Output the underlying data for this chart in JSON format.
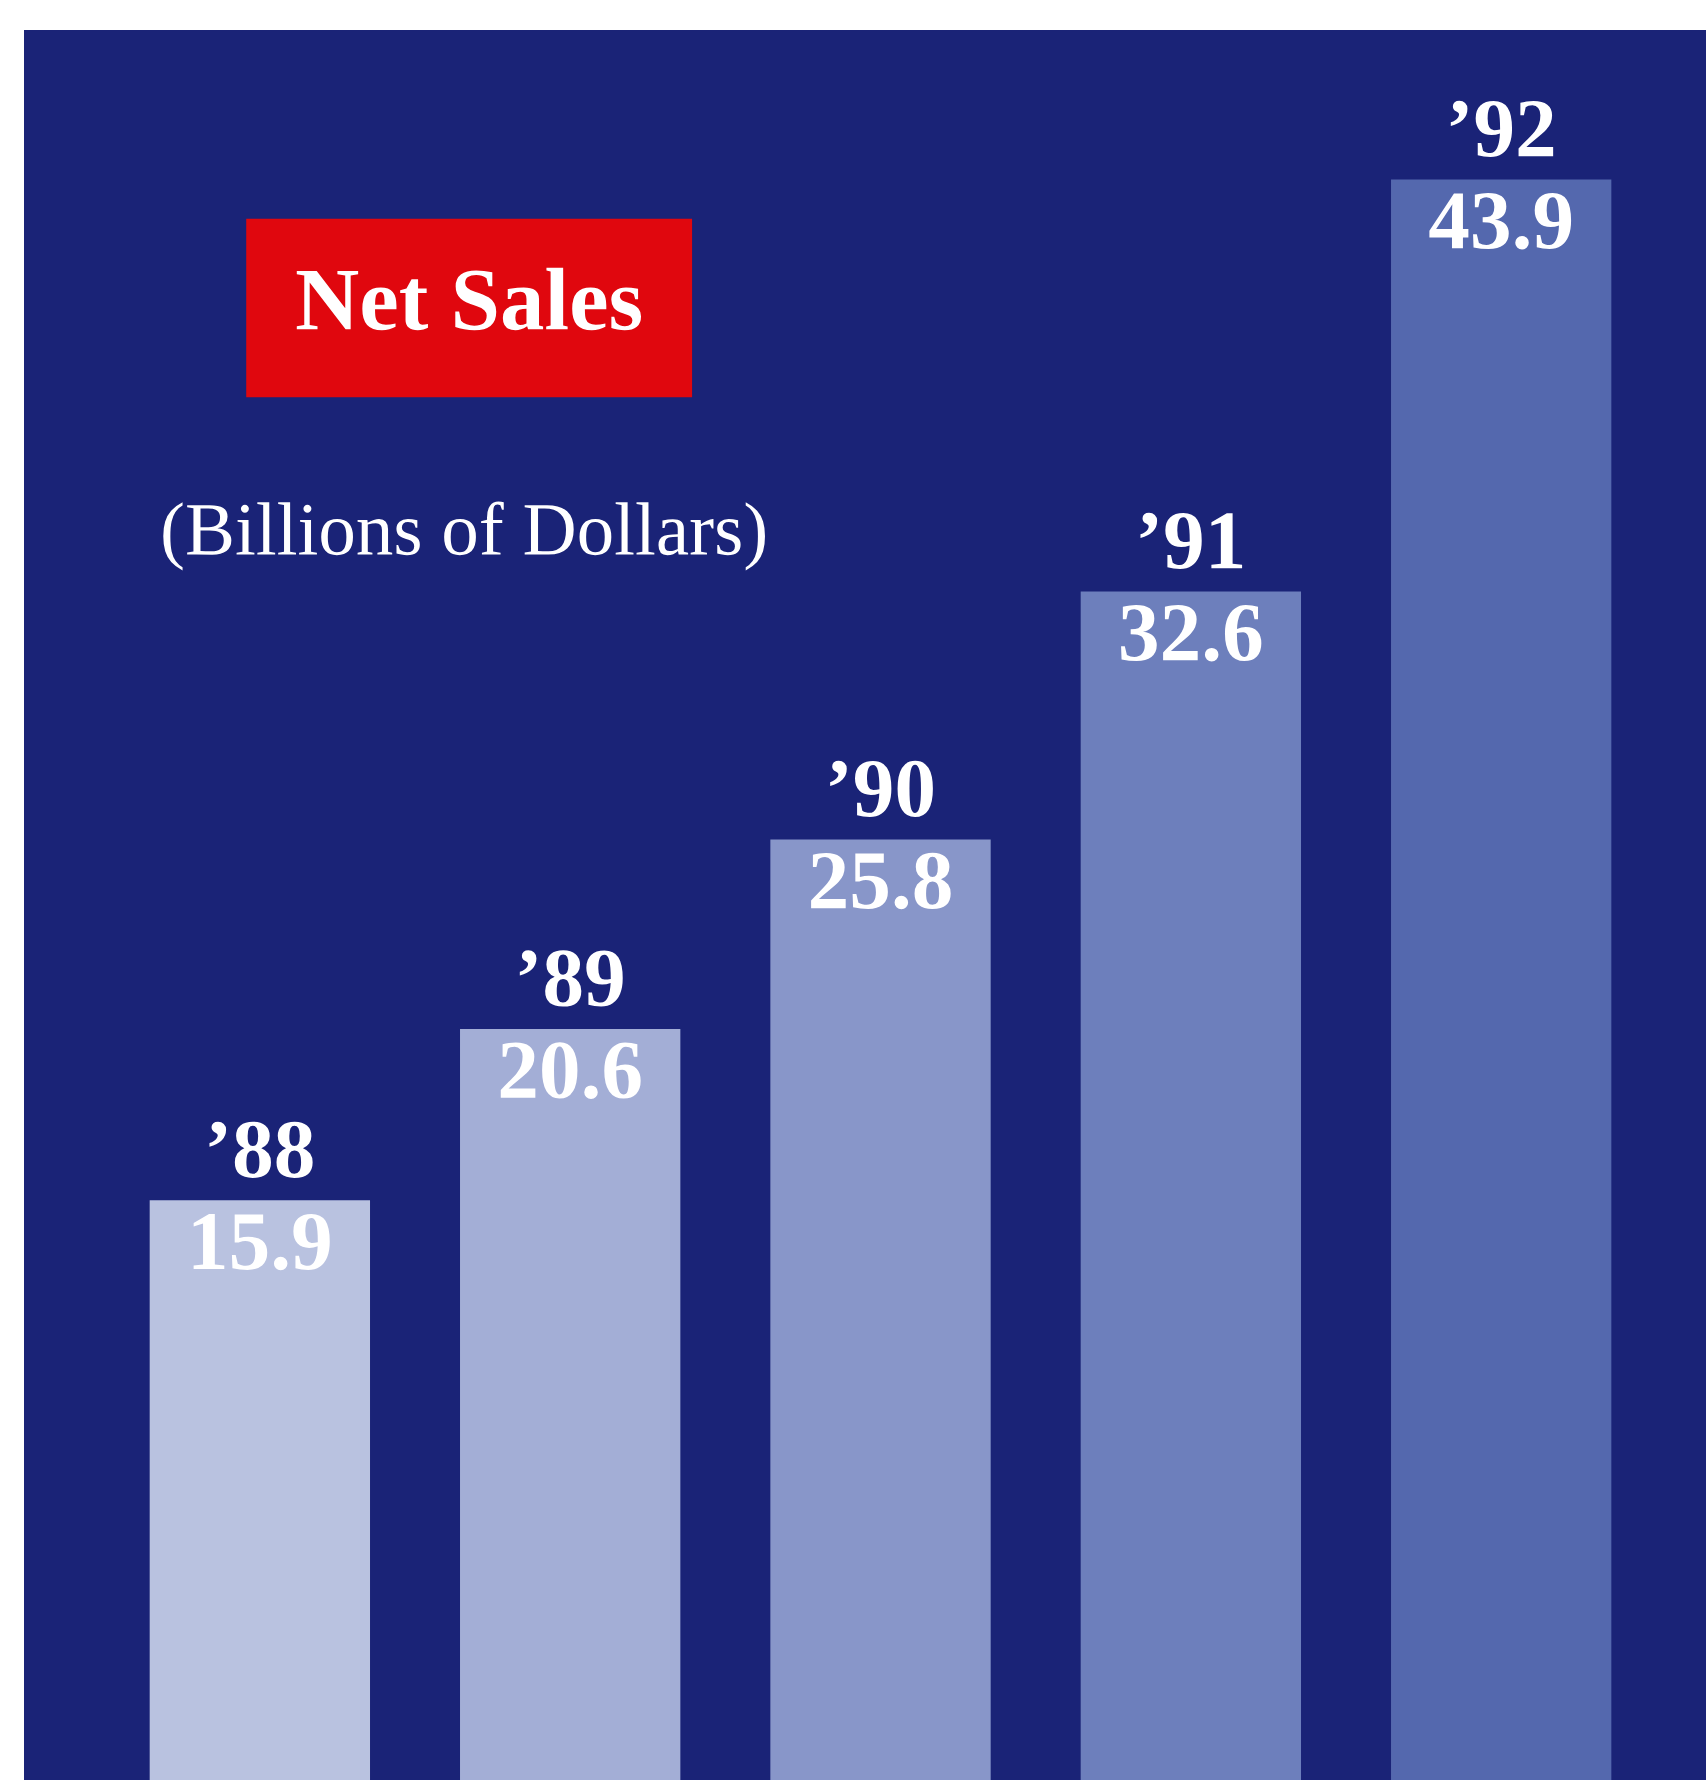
{
  "chart_data": {
    "type": "bar",
    "title": "Net Sales",
    "subtitle": "(Billions of Dollars)",
    "categories": [
      "’88",
      "’89",
      "’90",
      "’91",
      "’92"
    ],
    "values": [
      15.9,
      20.6,
      25.8,
      32.6,
      43.9
    ],
    "colors": [
      "#b9c2e0",
      "#a3aed6",
      "#8896c9",
      "#6d7fbc",
      "#5468ae"
    ],
    "ylim": [
      0,
      48
    ],
    "data_labels": true
  }
}
